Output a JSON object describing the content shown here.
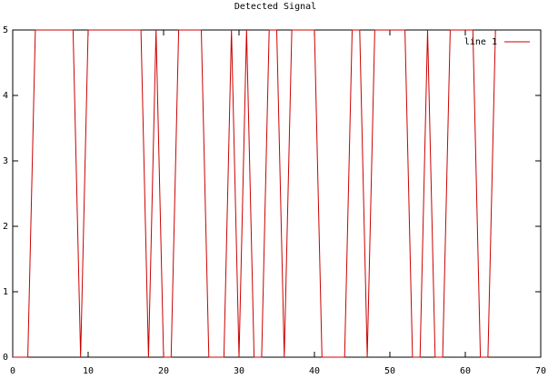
{
  "chart_data": {
    "type": "line",
    "title": "Detected Signal",
    "x": [
      0,
      1,
      2,
      3,
      4,
      5,
      6,
      7,
      8,
      9,
      10,
      11,
      12,
      13,
      14,
      15,
      16,
      17,
      18,
      19,
      20,
      21,
      22,
      23,
      24,
      25,
      26,
      27,
      28,
      29,
      30,
      31,
      32,
      33,
      34,
      35,
      36,
      37,
      38,
      39,
      40,
      41,
      42,
      43,
      44,
      45,
      46,
      47,
      48,
      49,
      50,
      51,
      52,
      53,
      54,
      55,
      56,
      57,
      58,
      59,
      60,
      61,
      62,
      63,
      64
    ],
    "series": [
      {
        "name": "line 1",
        "color": "#cc0000",
        "values": [
          0,
          0,
          0,
          5,
          5,
          5,
          5,
          5,
          5,
          0,
          5,
          5,
          5,
          5,
          5,
          5,
          5,
          5,
          0,
          5,
          0,
          0,
          5,
          5,
          5,
          5,
          0,
          0,
          0,
          5,
          0,
          5,
          0,
          0,
          5,
          5,
          0,
          5,
          5,
          5,
          5,
          0,
          0,
          0,
          0,
          5,
          5,
          0,
          5,
          5,
          5,
          5,
          5,
          0,
          0,
          5,
          0,
          0,
          5,
          5,
          5,
          5,
          0,
          0,
          5
        ]
      }
    ],
    "xlim": [
      0,
      70
    ],
    "xticks": [
      0,
      10,
      20,
      30,
      40,
      50,
      60,
      70
    ],
    "ylim": [
      0,
      5
    ],
    "yticks": [
      0,
      1,
      2,
      3,
      4,
      5
    ],
    "legend": "top-right",
    "grid": false
  }
}
